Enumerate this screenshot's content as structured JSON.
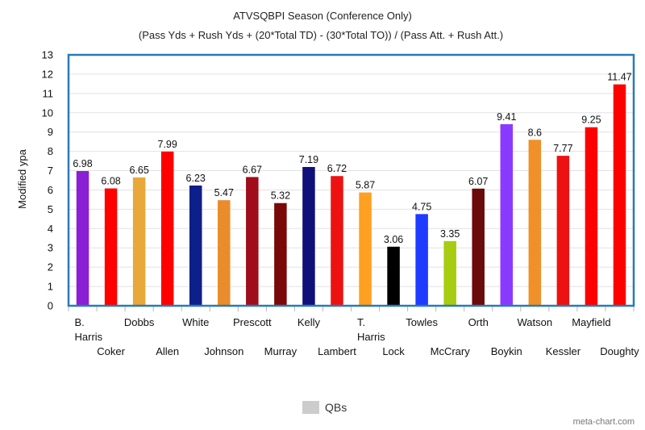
{
  "chart_data": {
    "type": "bar",
    "title": "ATVSQBPI Season (Conference Only)",
    "subtitle": "(Pass Yds + Rush Yds + (20*Total TD) - (30*Total TO)) / (Pass Att. + Rush Att.)",
    "xlabel": "",
    "ylabel": "Modified ypa",
    "ylim": [
      0,
      13
    ],
    "yticks": [
      0,
      1,
      2,
      3,
      4,
      5,
      6,
      7,
      8,
      9,
      10,
      11,
      12,
      13
    ],
    "grid": true,
    "legend": {
      "placement": "bottom",
      "entries": [
        {
          "label": "QBs",
          "color": "#cccccc"
        }
      ]
    },
    "categories": [
      [
        "B.",
        "Harris"
      ],
      [
        "Coker"
      ],
      [
        "Dobbs"
      ],
      [
        "Allen"
      ],
      [
        "White"
      ],
      [
        "Johnson"
      ],
      [
        "Prescott"
      ],
      [
        "Murray"
      ],
      [
        "Kelly"
      ],
      [
        "Lambert"
      ],
      [
        "T.",
        "Harris"
      ],
      [
        "Lock"
      ],
      [
        "Towles"
      ],
      [
        "McCrary"
      ],
      [
        "Orth"
      ],
      [
        "Boykin"
      ],
      [
        "Watson"
      ],
      [
        "Kessler"
      ],
      [
        "Mayfield"
      ],
      [
        "Doughty"
      ]
    ],
    "values": [
      6.98,
      6.08,
      6.65,
      7.99,
      6.23,
      5.47,
      6.67,
      5.32,
      7.19,
      6.72,
      5.87,
      3.06,
      4.75,
      3.35,
      6.07,
      9.41,
      8.6,
      7.77,
      9.25,
      11.47
    ],
    "value_labels": [
      "6.98",
      "6.08",
      "6.65",
      "7.99",
      "6.23",
      "5.47",
      "6.67",
      "5.32",
      "7.19",
      "6.72",
      "5.87",
      "3.06",
      "4.75",
      "3.35",
      "6.07",
      "9.41",
      "8.6",
      "7.77",
      "9.25",
      "11.47"
    ],
    "colors": [
      "#8b1fd6",
      "#ff0000",
      "#e8a83a",
      "#ff0000",
      "#0d1f8a",
      "#ea8c2c",
      "#a00c1a",
      "#7a0808",
      "#10107a",
      "#ee1111",
      "#ffa020",
      "#000000",
      "#1e3cff",
      "#a8cc10",
      "#6a0a0a",
      "#8a3aff",
      "#f09028",
      "#ee1111",
      "#ff0000",
      "#ff0000"
    ]
  },
  "credit": "meta-chart.com"
}
